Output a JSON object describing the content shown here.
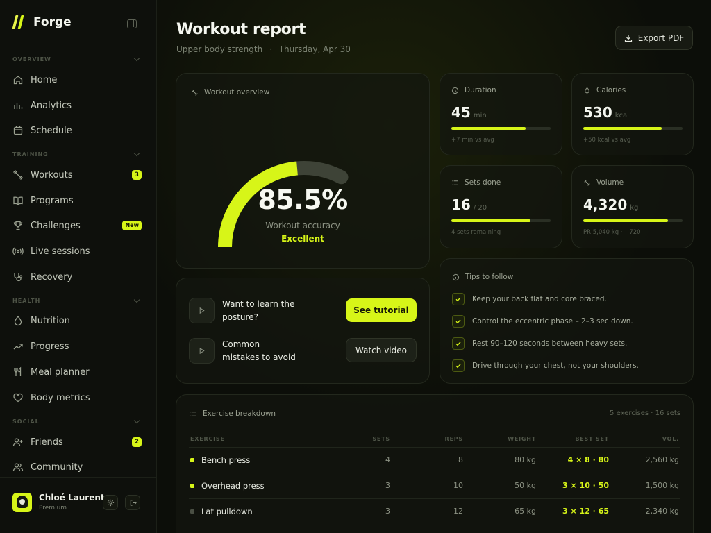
{
  "brand": {
    "name": "Forge"
  },
  "colors": {
    "accent": "#d7f518",
    "background": "#0b0d08",
    "card": "#13160f",
    "muted": "#3e4337"
  },
  "sidebar": {
    "sections": [
      {
        "label": "OVERVIEW"
      },
      {
        "label": "TRAINING"
      },
      {
        "label": "HEALTH"
      },
      {
        "label": "SOCIAL"
      }
    ],
    "items": [
      {
        "label": "Home",
        "icon": "home-icon"
      },
      {
        "label": "Analytics",
        "icon": "bar-chart-icon"
      },
      {
        "label": "Schedule",
        "icon": "calendar-icon"
      },
      {
        "label": "Workouts",
        "icon": "dumbbell-icon",
        "badge": "3"
      },
      {
        "label": "Programs",
        "icon": "book-icon"
      },
      {
        "label": "Challenges",
        "icon": "trophy-icon",
        "badge": "New"
      },
      {
        "label": "Live sessions",
        "icon": "broadcast-icon"
      },
      {
        "label": "Recovery",
        "icon": "stethoscope-icon"
      },
      {
        "label": "Nutrition",
        "icon": "droplet-icon"
      },
      {
        "label": "Progress",
        "icon": "trend-up-icon"
      },
      {
        "label": "Meal planner",
        "icon": "utensils-icon"
      },
      {
        "label": "Body metrics",
        "icon": "heart-icon"
      },
      {
        "label": "Friends",
        "icon": "user-plus-icon",
        "badge": "2"
      },
      {
        "label": "Community",
        "icon": "users-icon"
      }
    ]
  },
  "user": {
    "name": "Chloé Laurent",
    "plan": "Premium"
  },
  "header": {
    "title": "Workout report",
    "subtitle": "Upper body strength",
    "date": "Thursday, Apr 30",
    "export_label": "Export PDF"
  },
  "overview": {
    "title": "Workout overview",
    "accuracy_text": "85.5%",
    "accuracy_fraction": 0.855,
    "label": "Workout accuracy",
    "status": "Excellent"
  },
  "stats": [
    {
      "title": "Duration",
      "value": "45",
      "unit": "min",
      "progress": 0.75,
      "note": "+7 min vs avg",
      "icon": "clock-icon"
    },
    {
      "title": "Calories",
      "value": "530",
      "unit": "kcal",
      "progress": 0.79,
      "note": "+50 kcal vs avg",
      "icon": "flame-icon"
    },
    {
      "title": "Sets done",
      "value": "16",
      "unit": "/ 20",
      "progress": 0.8,
      "note": "4 sets remaining",
      "icon": "list-icon"
    },
    {
      "title": "Volume",
      "value": "4,320",
      "unit": "kg",
      "progress": 0.85,
      "note": "PR 5,040 kg · −720",
      "icon": "dumbbell-icon"
    }
  ],
  "learn": {
    "rows": [
      {
        "text": "Want to learn the posture?",
        "button": "See tutorial"
      },
      {
        "text": "Common mistakes to avoid",
        "button": "Watch video"
      }
    ]
  },
  "tips": {
    "title": "Tips to follow",
    "items": [
      "Keep your back flat and core braced.",
      "Control the eccentric phase – 2–3 sec down.",
      "Rest 90–120 seconds between heavy sets.",
      "Drive through your chest, not your shoulders."
    ]
  },
  "breakdown": {
    "title": "Exercise breakdown",
    "meta": "5 exercises · 16 sets",
    "columns": [
      "EXERCISE",
      "SETS",
      "REPS",
      "WEIGHT",
      "BEST SET",
      "VOL."
    ],
    "rows": [
      {
        "name": "Bench press",
        "sets": "4",
        "reps": "8",
        "weight": "80 kg",
        "best": "4 × 8 · 80",
        "volume": "2,560 kg",
        "dot": "#d7f518"
      },
      {
        "name": "Overhead press",
        "sets": "3",
        "reps": "10",
        "weight": "50 kg",
        "best": "3 × 10 · 50",
        "volume": "1,500 kg",
        "dot": "#d7f518"
      },
      {
        "name": "Lat pulldown",
        "sets": "3",
        "reps": "12",
        "weight": "65 kg",
        "best": "3 × 12 · 65",
        "volume": "2,340 kg",
        "dot": "#4a4f43"
      }
    ]
  }
}
